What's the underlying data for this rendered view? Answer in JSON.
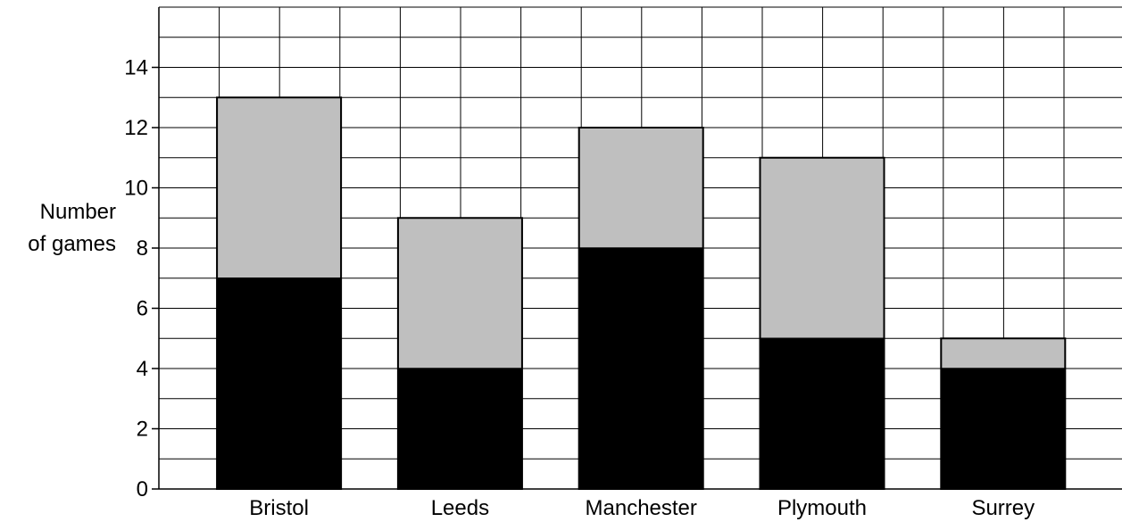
{
  "chart_data": {
    "type": "bar",
    "stacked": true,
    "categories": [
      "Bristol",
      "Leeds",
      "Manchester",
      "Plymouth",
      "Surrey"
    ],
    "series": [
      {
        "values": [
          7,
          4,
          8,
          5,
          4
        ],
        "color": "#000000"
      },
      {
        "values": [
          6,
          5,
          4,
          6,
          1
        ],
        "color": "#bfbfbf"
      }
    ],
    "ylabel_lines": [
      "Number",
      "of games"
    ],
    "yticks": [
      0,
      2,
      4,
      6,
      8,
      10,
      12,
      14
    ],
    "ylim": [
      0,
      16
    ],
    "grid": true
  }
}
